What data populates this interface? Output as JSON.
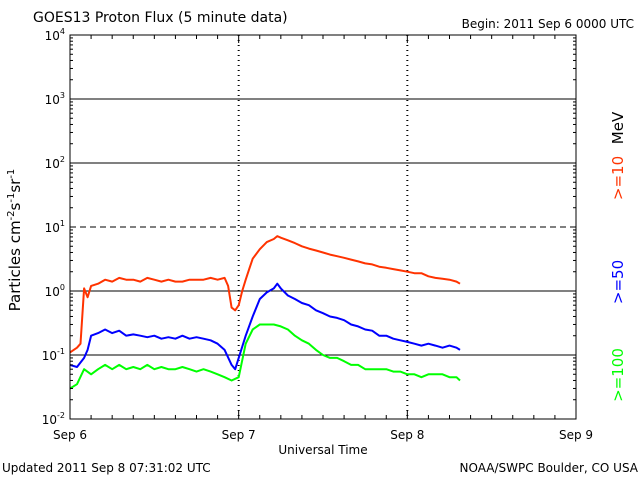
{
  "header": {
    "title": "GOES13 Proton Flux (5 minute data)",
    "begin": "Begin: 2011 Sep 6 0000 UTC"
  },
  "footer": {
    "updated": "Updated 2011 Sep  8 07:31:02 UTC",
    "credit": "NOAA/SWPC Boulder, CO USA"
  },
  "chart_data": {
    "type": "line",
    "title": "GOES13 Proton Flux (5 minute data)",
    "xlabel": "Universal Time",
    "ylabel": "Particles cm-2s-1sr-1",
    "y_scale": "log",
    "ylim": [
      0.01,
      10000
    ],
    "y_ticks": [
      {
        "base": "10",
        "exp": "4",
        "value": 10000
      },
      {
        "base": "10",
        "exp": "3",
        "value": 1000
      },
      {
        "base": "10",
        "exp": "2",
        "value": 100
      },
      {
        "base": "10",
        "exp": "1",
        "value": 10
      },
      {
        "base": "10",
        "exp": "0",
        "value": 1
      },
      {
        "base": "10",
        "exp": "-1",
        "value": 0.1
      },
      {
        "base": "10",
        "exp": "-2",
        "value": 0.01
      }
    ],
    "x_unit": "hours since 2011 Sep 6 00:00 UTC",
    "xlim": [
      0,
      72
    ],
    "x_ticks": [
      {
        "label": "Sep 6",
        "value": 0
      },
      {
        "label": "Sep 7",
        "value": 24
      },
      {
        "label": "Sep 8",
        "value": 48
      },
      {
        "label": "Sep 9",
        "value": 72
      }
    ],
    "energy_unit": "MeV",
    "grid": "solid horizontal lines at 10^3, 10^2, 10^0, 10^-1; dashed at 10^1; dashed vertical markers at day boundaries",
    "legend": "right side, vertical",
    "series": [
      {
        "name": ">=10",
        "color": "#ff3300",
        "points": [
          [
            0,
            0.11
          ],
          [
            1,
            0.13
          ],
          [
            1.5,
            0.15
          ],
          [
            2,
            1.1
          ],
          [
            2.5,
            0.8
          ],
          [
            3,
            1.2
          ],
          [
            4,
            1.3
          ],
          [
            5,
            1.5
          ],
          [
            6,
            1.4
          ],
          [
            7,
            1.6
          ],
          [
            8,
            1.5
          ],
          [
            9,
            1.5
          ],
          [
            10,
            1.4
          ],
          [
            11,
            1.6
          ],
          [
            12,
            1.5
          ],
          [
            13,
            1.4
          ],
          [
            14,
            1.5
          ],
          [
            15,
            1.4
          ],
          [
            16,
            1.4
          ],
          [
            17,
            1.5
          ],
          [
            18,
            1.5
          ],
          [
            19,
            1.5
          ],
          [
            20,
            1.6
          ],
          [
            21,
            1.5
          ],
          [
            22,
            1.6
          ],
          [
            22.5,
            1.2
          ],
          [
            23,
            0.55
          ],
          [
            23.5,
            0.5
          ],
          [
            24,
            0.6
          ],
          [
            24.5,
            1.0
          ],
          [
            25,
            1.5
          ],
          [
            25.5,
            2.2
          ],
          [
            26,
            3.2
          ],
          [
            27,
            4.5
          ],
          [
            28,
            5.8
          ],
          [
            29,
            6.5
          ],
          [
            29.5,
            7.2
          ],
          [
            30,
            6.8
          ],
          [
            31,
            6.2
          ],
          [
            32,
            5.6
          ],
          [
            33,
            5.0
          ],
          [
            34,
            4.6
          ],
          [
            35,
            4.3
          ],
          [
            36,
            4.0
          ],
          [
            37,
            3.7
          ],
          [
            38,
            3.5
          ],
          [
            39,
            3.3
          ],
          [
            40,
            3.1
          ],
          [
            41,
            2.9
          ],
          [
            42,
            2.7
          ],
          [
            43,
            2.6
          ],
          [
            44,
            2.4
          ],
          [
            45,
            2.3
          ],
          [
            46,
            2.2
          ],
          [
            47,
            2.1
          ],
          [
            48,
            2.0
          ],
          [
            49,
            1.9
          ],
          [
            50,
            1.9
          ],
          [
            51,
            1.7
          ],
          [
            52,
            1.6
          ],
          [
            53,
            1.55
          ],
          [
            54,
            1.5
          ],
          [
            55,
            1.4
          ],
          [
            55.5,
            1.3
          ]
        ]
      },
      {
        "name": ">=50",
        "color": "#0000ff",
        "points": [
          [
            0,
            0.07
          ],
          [
            1,
            0.065
          ],
          [
            2,
            0.09
          ],
          [
            2.5,
            0.12
          ],
          [
            3,
            0.2
          ],
          [
            4,
            0.22
          ],
          [
            5,
            0.25
          ],
          [
            6,
            0.22
          ],
          [
            7,
            0.24
          ],
          [
            8,
            0.2
          ],
          [
            9,
            0.21
          ],
          [
            10,
            0.2
          ],
          [
            11,
            0.19
          ],
          [
            12,
            0.2
          ],
          [
            13,
            0.18
          ],
          [
            14,
            0.19
          ],
          [
            15,
            0.18
          ],
          [
            16,
            0.2
          ],
          [
            17,
            0.18
          ],
          [
            18,
            0.19
          ],
          [
            19,
            0.18
          ],
          [
            20,
            0.17
          ],
          [
            21,
            0.15
          ],
          [
            22,
            0.12
          ],
          [
            23,
            0.07
          ],
          [
            23.5,
            0.06
          ],
          [
            24,
            0.09
          ],
          [
            25,
            0.2
          ],
          [
            26,
            0.4
          ],
          [
            27,
            0.75
          ],
          [
            28,
            0.95
          ],
          [
            29,
            1.1
          ],
          [
            29.5,
            1.3
          ],
          [
            30,
            1.1
          ],
          [
            31,
            0.85
          ],
          [
            32,
            0.75
          ],
          [
            33,
            0.65
          ],
          [
            34,
            0.6
          ],
          [
            35,
            0.5
          ],
          [
            36,
            0.45
          ],
          [
            37,
            0.4
          ],
          [
            38,
            0.38
          ],
          [
            39,
            0.35
          ],
          [
            40,
            0.3
          ],
          [
            41,
            0.28
          ],
          [
            42,
            0.25
          ],
          [
            43,
            0.24
          ],
          [
            44,
            0.2
          ],
          [
            45,
            0.2
          ],
          [
            46,
            0.18
          ],
          [
            47,
            0.17
          ],
          [
            48,
            0.16
          ],
          [
            49,
            0.15
          ],
          [
            50,
            0.14
          ],
          [
            51,
            0.15
          ],
          [
            52,
            0.14
          ],
          [
            53,
            0.13
          ],
          [
            54,
            0.14
          ],
          [
            55,
            0.13
          ],
          [
            55.5,
            0.12
          ]
        ]
      },
      {
        "name": ">=100",
        "color": "#00ff00",
        "points": [
          [
            0,
            0.03
          ],
          [
            1,
            0.035
          ],
          [
            2,
            0.06
          ],
          [
            3,
            0.05
          ],
          [
            4,
            0.06
          ],
          [
            5,
            0.07
          ],
          [
            6,
            0.06
          ],
          [
            7,
            0.07
          ],
          [
            8,
            0.06
          ],
          [
            9,
            0.065
          ],
          [
            10,
            0.06
          ],
          [
            11,
            0.07
          ],
          [
            12,
            0.06
          ],
          [
            13,
            0.065
          ],
          [
            14,
            0.06
          ],
          [
            15,
            0.06
          ],
          [
            16,
            0.065
          ],
          [
            17,
            0.06
          ],
          [
            18,
            0.055
          ],
          [
            19,
            0.06
          ],
          [
            20,
            0.055
          ],
          [
            21,
            0.05
          ],
          [
            22,
            0.045
          ],
          [
            23,
            0.04
          ],
          [
            24,
            0.045
          ],
          [
            25,
            0.15
          ],
          [
            26,
            0.25
          ],
          [
            27,
            0.3
          ],
          [
            28,
            0.3
          ],
          [
            29,
            0.3
          ],
          [
            30,
            0.28
          ],
          [
            31,
            0.25
          ],
          [
            32,
            0.2
          ],
          [
            33,
            0.17
          ],
          [
            34,
            0.15
          ],
          [
            35,
            0.12
          ],
          [
            36,
            0.1
          ],
          [
            37,
            0.09
          ],
          [
            38,
            0.09
          ],
          [
            39,
            0.08
          ],
          [
            40,
            0.07
          ],
          [
            41,
            0.07
          ],
          [
            42,
            0.06
          ],
          [
            43,
            0.06
          ],
          [
            44,
            0.06
          ],
          [
            45,
            0.06
          ],
          [
            46,
            0.055
          ],
          [
            47,
            0.055
          ],
          [
            48,
            0.05
          ],
          [
            49,
            0.05
          ],
          [
            50,
            0.045
          ],
          [
            51,
            0.05
          ],
          [
            52,
            0.05
          ],
          [
            53,
            0.05
          ],
          [
            54,
            0.045
          ],
          [
            55,
            0.045
          ],
          [
            55.5,
            0.04
          ]
        ]
      }
    ]
  }
}
